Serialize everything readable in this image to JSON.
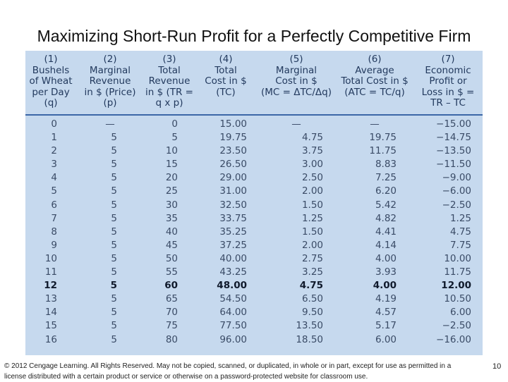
{
  "slide": {
    "title": "Maximizing Short-Run Profit for a Perfectly Competitive Firm",
    "footer": "© 2012 Cengage Learning. All Rights Reserved. May not be copied, scanned, or duplicated, in whole or in part, except for use as permitted in a license distributed with a certain product or service or otherwise on a password-protected website for classroom use.",
    "page_number": "10"
  },
  "table": {
    "headers": [
      [
        "(1)",
        "Bushels",
        "of Wheat",
        "per Day",
        "(q)"
      ],
      [
        "(2)",
        "Marginal",
        "Revenue",
        "in $ (Price)",
        "(p)"
      ],
      [
        "(3)",
        "Total",
        "Revenue",
        "in $ (TR =",
        "q x p)"
      ],
      [
        "(4)",
        "Total",
        "Cost in $",
        "(TC)"
      ],
      [
        "(5)",
        "Marginal",
        "Cost in $",
        "(MC = ΔTC/Δq)"
      ],
      [
        "(6)",
        "Average",
        "Total Cost in $",
        "(ATC = TC/q)"
      ],
      [
        "(7)",
        "Economic",
        "Profit or",
        "Loss in $ =",
        "TR – TC"
      ]
    ],
    "highlight_row": 12,
    "rows": [
      [
        "0",
        "—",
        "0",
        "15.00",
        "—",
        "—",
        "−15.00"
      ],
      [
        "1",
        "5",
        "5",
        "19.75",
        "4.75",
        "19.75",
        "−14.75"
      ],
      [
        "2",
        "5",
        "10",
        "23.50",
        "3.75",
        "11.75",
        "−13.50"
      ],
      [
        "3",
        "5",
        "15",
        "26.50",
        "3.00",
        "8.83",
        "−11.50"
      ],
      [
        "4",
        "5",
        "20",
        "29.00",
        "2.50",
        "7.25",
        "−9.00"
      ],
      [
        "5",
        "5",
        "25",
        "31.00",
        "2.00",
        "6.20",
        "−6.00"
      ],
      [
        "6",
        "5",
        "30",
        "32.50",
        "1.50",
        "5.42",
        "−2.50"
      ],
      [
        "7",
        "5",
        "35",
        "33.75",
        "1.25",
        "4.82",
        "1.25"
      ],
      [
        "8",
        "5",
        "40",
        "35.25",
        "1.50",
        "4.41",
        "4.75"
      ],
      [
        "9",
        "5",
        "45",
        "37.25",
        "2.00",
        "4.14",
        "7.75"
      ],
      [
        "10",
        "5",
        "50",
        "40.00",
        "2.75",
        "4.00",
        "10.00"
      ],
      [
        "11",
        "5",
        "55",
        "43.25",
        "3.25",
        "3.93",
        "11.75"
      ],
      [
        "12",
        "5",
        "60",
        "48.00",
        "4.75",
        "4.00",
        "12.00"
      ],
      [
        "13",
        "5",
        "65",
        "54.50",
        "6.50",
        "4.19",
        "10.50"
      ],
      [
        "14",
        "5",
        "70",
        "64.00",
        "9.50",
        "4.57",
        "6.00"
      ],
      [
        "15",
        "5",
        "75",
        "77.50",
        "13.50",
        "5.17",
        "−2.50"
      ],
      [
        "16",
        "5",
        "80",
        "96.00",
        "18.50",
        "6.00",
        "−16.00"
      ]
    ]
  }
}
